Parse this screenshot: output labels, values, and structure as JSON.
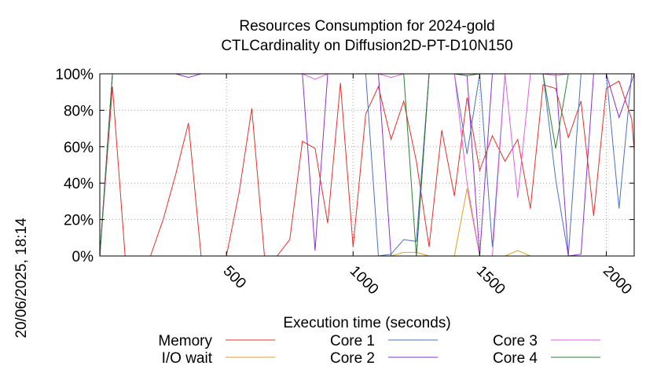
{
  "chart_data": {
    "type": "line",
    "title": "Resources Consumption for 2024-gold",
    "subtitle": "CTLCardinality on Diffusion2D-PT-D10N150",
    "xlabel": "Execution time (seconds)",
    "ylabel": "",
    "side_label": "20/06/2025, 18:14",
    "xlim": [
      0,
      2110
    ],
    "ylim": [
      0,
      100
    ],
    "x_ticks": [
      500,
      1000,
      1500,
      2000
    ],
    "x_tick_labels": [
      "500",
      "1000",
      "1500",
      "2000"
    ],
    "y_ticks": [
      0,
      20,
      40,
      60,
      80,
      100
    ],
    "y_tick_labels": [
      "0%",
      "20%",
      "40%",
      "60%",
      "80%",
      "100%"
    ],
    "grid": true,
    "legend_position": "bottom",
    "series": [
      {
        "name": "Memory",
        "color": "#e8302a",
        "x": [
          0,
          50,
          100,
          150,
          200,
          250,
          300,
          350,
          400,
          450,
          500,
          550,
          600,
          650,
          700,
          750,
          800,
          850,
          900,
          950,
          1000,
          1050,
          1100,
          1150,
          1200,
          1250,
          1300,
          1350,
          1400,
          1450,
          1500,
          1550,
          1600,
          1650,
          1700,
          1750,
          1800,
          1850,
          1900,
          1950,
          2000,
          2050,
          2100,
          2110
        ],
        "y": [
          0,
          93,
          0,
          0,
          0,
          20,
          45,
          73,
          0,
          0,
          0,
          35,
          81,
          0,
          0,
          9,
          63,
          59,
          18,
          95,
          5,
          78,
          93,
          64,
          85,
          52,
          5,
          69,
          33,
          87,
          47,
          66,
          52,
          64,
          26,
          94,
          92,
          65,
          85,
          22,
          92,
          96,
          75,
          58
        ]
      },
      {
        "name": "I/O wait",
        "color": "#e0a020",
        "x": [
          0,
          1150,
          1200,
          1250,
          1300,
          1350,
          1400,
          1450,
          1500,
          1550,
          1600,
          1650,
          1700,
          2110
        ],
        "y": [
          0,
          0,
          2,
          2,
          0,
          0,
          0,
          37,
          0,
          0,
          0,
          3,
          0,
          0
        ]
      },
      {
        "name": "Core 1",
        "color": "#4a72c0",
        "x": [
          0,
          50,
          1000,
          1050,
          1100,
          1150,
          1200,
          1250,
          1300,
          1350,
          1400,
          1450,
          1500,
          1550,
          1600,
          1650,
          1700,
          1750,
          1800,
          1850,
          1900,
          1950,
          2000,
          2050,
          2100,
          2110
        ],
        "y": [
          0,
          100,
          100,
          100,
          0,
          1,
          9,
          8,
          100,
          100,
          100,
          56,
          100,
          5,
          100,
          100,
          100,
          100,
          42,
          0,
          100,
          100,
          100,
          26,
          100,
          100
        ]
      },
      {
        "name": "Core 2",
        "color": "#8a30d0",
        "x": [
          0,
          50,
          300,
          350,
          400,
          800,
          850,
          900,
          1000,
          1050,
          1100,
          1150,
          1200,
          1250,
          1300,
          1350,
          1400,
          1450,
          1500,
          1550,
          1600,
          1650,
          1700,
          1750,
          1800,
          1850,
          1900,
          1950,
          2000,
          2050,
          2110
        ],
        "y": [
          0,
          100,
          100,
          98,
          100,
          100,
          3,
          100,
          100,
          100,
          100,
          0,
          0,
          0,
          100,
          100,
          100,
          99,
          0,
          100,
          100,
          100,
          100,
          100,
          100,
          0,
          1,
          100,
          100,
          76,
          100
        ]
      },
      {
        "name": "Core 3",
        "color": "#e060e0",
        "x": [
          0,
          50,
          800,
          850,
          900,
          1100,
          1150,
          1200,
          1250,
          1400,
          1450,
          1500,
          1550,
          1600,
          1650,
          1700,
          1750,
          1800,
          1850,
          1900,
          2000,
          2110
        ],
        "y": [
          0,
          100,
          100,
          97,
          100,
          100,
          98,
          100,
          100,
          100,
          40,
          0,
          0,
          100,
          32,
          100,
          100,
          99,
          100,
          100,
          100,
          100
        ]
      },
      {
        "name": "Core 4",
        "color": "#2a8030",
        "x": [
          0,
          50,
          1150,
          1200,
          1250,
          1300,
          1400,
          1450,
          1500,
          1750,
          1800,
          1850,
          2110
        ],
        "y": [
          0,
          100,
          100,
          100,
          0,
          100,
          100,
          99,
          100,
          100,
          59,
          100,
          100
        ]
      }
    ]
  }
}
